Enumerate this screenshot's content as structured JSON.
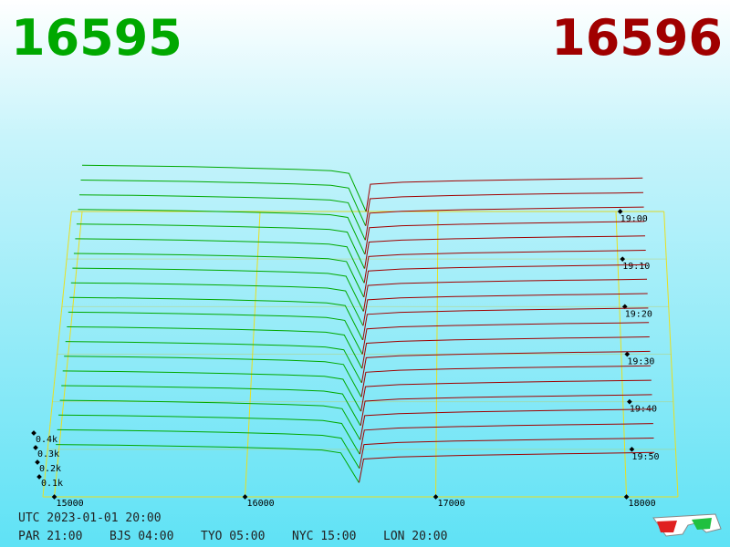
{
  "chart_data": {
    "type": "depth3d",
    "bid": 16595,
    "ask": 16596,
    "bid_color": "#00a800",
    "ask_color": "#a00000",
    "xlim": [
      14940,
      18270
    ],
    "xticks": [
      15000,
      16000,
      17000,
      18000
    ],
    "ylim": [
      0,
      450
    ],
    "yticks": [
      {
        "value": 100,
        "label": "0.1k"
      },
      {
        "value": 200,
        "label": "0.2k"
      },
      {
        "value": 300,
        "label": "0.3k"
      },
      {
        "value": 400,
        "label": "0.4k"
      }
    ],
    "tlim": [
      0,
      60
    ],
    "tticks": [
      {
        "value": 0,
        "label": "19:00"
      },
      {
        "value": 10,
        "label": "19:10"
      },
      {
        "value": 20,
        "label": "19:20"
      },
      {
        "value": 30,
        "label": "19:30"
      },
      {
        "value": 40,
        "label": "19:40"
      },
      {
        "value": 50,
        "label": "19:50"
      }
    ],
    "bid_prices": [
      15000,
      15300,
      15600,
      15900,
      16200,
      16400,
      16500,
      16595
    ],
    "ask_prices": [
      16596,
      16620,
      16800,
      17100,
      17400,
      17700,
      18000,
      18150
    ],
    "snapshots": [
      {
        "t": 0,
        "bids": [
          340,
          335,
          330,
          320,
          310,
          300,
          280,
          0
        ],
        "asks": [
          0,
          200,
          215,
          225,
          232,
          238,
          242,
          246
        ]
      },
      {
        "t": 3,
        "bids": [
          335,
          330,
          325,
          316,
          306,
          296,
          276,
          0
        ],
        "asks": [
          0,
          198,
          212,
          222,
          229,
          235,
          240,
          243
        ]
      },
      {
        "t": 6,
        "bids": [
          330,
          326,
          320,
          312,
          302,
          292,
          272,
          0
        ],
        "asks": [
          0,
          196,
          210,
          220,
          227,
          233,
          238,
          241
        ]
      },
      {
        "t": 9,
        "bids": [
          326,
          322,
          316,
          308,
          298,
          288,
          268,
          0
        ],
        "asks": [
          0,
          194,
          208,
          218,
          225,
          231,
          236,
          239
        ]
      },
      {
        "t": 12,
        "bids": [
          322,
          318,
          312,
          304,
          294,
          284,
          264,
          0
        ],
        "asks": [
          0,
          192,
          206,
          216,
          223,
          229,
          234,
          237
        ]
      },
      {
        "t": 15,
        "bids": [
          318,
          314,
          308,
          300,
          290,
          280,
          260,
          0
        ],
        "asks": [
          0,
          190,
          204,
          214,
          221,
          227,
          232,
          235
        ]
      },
      {
        "t": 18,
        "bids": [
          314,
          310,
          304,
          296,
          286,
          276,
          256,
          0
        ],
        "asks": [
          0,
          188,
          202,
          212,
          219,
          225,
          230,
          233
        ]
      },
      {
        "t": 21,
        "bids": [
          310,
          306,
          300,
          292,
          282,
          272,
          252,
          0
        ],
        "asks": [
          0,
          186,
          200,
          210,
          217,
          223,
          228,
          231
        ]
      },
      {
        "t": 24,
        "bids": [
          306,
          302,
          296,
          288,
          278,
          268,
          248,
          0
        ],
        "asks": [
          0,
          184,
          198,
          208,
          215,
          221,
          226,
          229
        ]
      },
      {
        "t": 27,
        "bids": [
          302,
          298,
          292,
          284,
          274,
          264,
          244,
          0
        ],
        "asks": [
          0,
          182,
          196,
          206,
          213,
          219,
          224,
          227
        ]
      },
      {
        "t": 30,
        "bids": [
          298,
          294,
          288,
          280,
          270,
          260,
          240,
          0
        ],
        "asks": [
          0,
          180,
          194,
          204,
          211,
          217,
          222,
          225
        ]
      },
      {
        "t": 33,
        "bids": [
          294,
          290,
          284,
          276,
          266,
          256,
          236,
          0
        ],
        "asks": [
          0,
          178,
          192,
          202,
          209,
          215,
          220,
          223
        ]
      },
      {
        "t": 36,
        "bids": [
          290,
          286,
          280,
          272,
          262,
          252,
          232,
          0
        ],
        "asks": [
          0,
          176,
          190,
          200,
          207,
          213,
          218,
          221
        ]
      },
      {
        "t": 39,
        "bids": [
          286,
          282,
          276,
          268,
          258,
          248,
          228,
          0
        ],
        "asks": [
          0,
          174,
          188,
          198,
          205,
          211,
          216,
          219
        ]
      },
      {
        "t": 42,
        "bids": [
          282,
          278,
          272,
          264,
          254,
          244,
          224,
          0
        ],
        "asks": [
          0,
          172,
          186,
          196,
          203,
          209,
          214,
          217
        ]
      },
      {
        "t": 45,
        "bids": [
          278,
          274,
          268,
          260,
          250,
          240,
          220,
          0
        ],
        "asks": [
          0,
          170,
          184,
          194,
          201,
          207,
          212,
          215
        ]
      },
      {
        "t": 48,
        "bids": [
          274,
          270,
          264,
          256,
          246,
          236,
          216,
          0
        ],
        "asks": [
          0,
          168,
          182,
          192,
          199,
          205,
          210,
          213
        ]
      },
      {
        "t": 51,
        "bids": [
          270,
          266,
          260,
          252,
          242,
          232,
          212,
          0
        ],
        "asks": [
          0,
          166,
          180,
          190,
          197,
          203,
          208,
          211
        ]
      },
      {
        "t": 54,
        "bids": [
          266,
          262,
          256,
          248,
          238,
          228,
          208,
          0
        ],
        "asks": [
          0,
          164,
          178,
          188,
          195,
          201,
          206,
          209
        ]
      },
      {
        "t": 57,
        "bids": [
          262,
          258,
          252,
          244,
          234,
          224,
          204,
          0
        ],
        "asks": [
          0,
          162,
          176,
          186,
          193,
          199,
          204,
          207
        ]
      }
    ],
    "utc": "UTC 2023-01-01 20:00",
    "clocks": [
      "PAR 21:00",
      "BJS 04:00",
      "TYO 05:00",
      "NYC 15:00",
      "LON 20:00"
    ]
  }
}
